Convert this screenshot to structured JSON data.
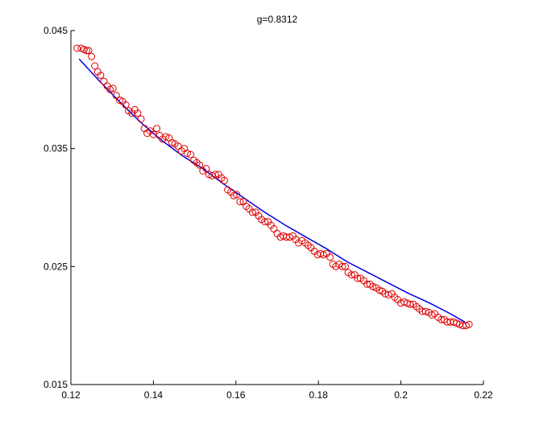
{
  "chart_data": {
    "type": "scatter",
    "title": "g=0.8312",
    "xlabel": "",
    "ylabel": "",
    "xlim": [
      0.12,
      0.22
    ],
    "ylim": [
      0.015,
      0.045
    ],
    "xticks": [
      0.12,
      0.14,
      0.16,
      0.18,
      0.2,
      0.22
    ],
    "xtick_labels": [
      "0.12",
      "0.14",
      "0.16",
      "0.18",
      "0.2",
      "0.22"
    ],
    "yticks": [
      0.015,
      0.025,
      0.035,
      0.045
    ],
    "ytick_labels": [
      "0.015",
      "0.025",
      "0.035",
      "0.045"
    ],
    "grid": false,
    "series": [
      {
        "kind": "markers",
        "marker": "circle-open",
        "color": "#e00000",
        "x": [
          0.1215,
          0.1225,
          0.1232,
          0.1238,
          0.1243,
          0.125,
          0.1258,
          0.1265,
          0.1272,
          0.128,
          0.1288,
          0.1295,
          0.1302,
          0.131,
          0.1318,
          0.1325,
          0.1333,
          0.134,
          0.1348,
          0.1355,
          0.1362,
          0.137,
          0.1378,
          0.1385,
          0.1392,
          0.14,
          0.1408,
          0.1415,
          0.1422,
          0.143,
          0.1438,
          0.1445,
          0.1452,
          0.146,
          0.1468,
          0.1475,
          0.1482,
          0.149,
          0.1498,
          0.1505,
          0.1512,
          0.152,
          0.1528,
          0.1535,
          0.1542,
          0.155,
          0.1558,
          0.1565,
          0.1572,
          0.158,
          0.1588,
          0.1595,
          0.1602,
          0.161,
          0.1618,
          0.1625,
          0.1632,
          0.164,
          0.1648,
          0.1655,
          0.1662,
          0.167,
          0.1678,
          0.1685,
          0.1692,
          0.17,
          0.1708,
          0.1715,
          0.1722,
          0.173,
          0.1738,
          0.1745,
          0.1752,
          0.176,
          0.1768,
          0.1775,
          0.1782,
          0.179,
          0.1798,
          0.1805,
          0.1812,
          0.182,
          0.1828,
          0.1835,
          0.1842,
          0.185,
          0.1858,
          0.1865,
          0.1872,
          0.188,
          0.1888,
          0.1895,
          0.1902,
          0.191,
          0.1918,
          0.1925,
          0.1932,
          0.194,
          0.1948,
          0.1955,
          0.1962,
          0.197,
          0.1978,
          0.1985,
          0.1992,
          0.2,
          0.2008,
          0.2015,
          0.2022,
          0.203,
          0.2038,
          0.2045,
          0.2052,
          0.206,
          0.2068,
          0.2075,
          0.2082,
          0.209,
          0.2098,
          0.2105,
          0.2112,
          0.212,
          0.2128,
          0.2135,
          0.2142,
          0.215,
          0.2158,
          0.2165
        ],
        "y": [
          0.0435,
          0.0435,
          0.0434,
          0.0433,
          0.0433,
          0.0428,
          0.042,
          0.0415,
          0.0412,
          0.0407,
          0.0403,
          0.04,
          0.0401,
          0.0395,
          0.0391,
          0.039,
          0.0387,
          0.0382,
          0.038,
          0.0383,
          0.038,
          0.0375,
          0.0367,
          0.0363,
          0.0365,
          0.0362,
          0.0367,
          0.0361,
          0.0358,
          0.036,
          0.0359,
          0.0355,
          0.0354,
          0.0352,
          0.0348,
          0.035,
          0.0346,
          0.0345,
          0.034,
          0.0338,
          0.0336,
          0.0331,
          0.0333,
          0.0328,
          0.0327,
          0.0328,
          0.0328,
          0.0325,
          0.0323,
          0.0315,
          0.0313,
          0.031,
          0.0311,
          0.0305,
          0.0305,
          0.0301,
          0.0299,
          0.0296,
          0.0296,
          0.0293,
          0.029,
          0.0288,
          0.0288,
          0.0285,
          0.0282,
          0.0278,
          0.0275,
          0.0276,
          0.0275,
          0.0275,
          0.0276,
          0.0273,
          0.027,
          0.0272,
          0.027,
          0.0268,
          0.0266,
          0.0263,
          0.026,
          0.0261,
          0.026,
          0.0261,
          0.0258,
          0.0252,
          0.025,
          0.0252,
          0.025,
          0.025,
          0.0245,
          0.0243,
          0.0243,
          0.024,
          0.024,
          0.0238,
          0.0235,
          0.0235,
          0.0233,
          0.0232,
          0.023,
          0.0229,
          0.0227,
          0.0226,
          0.0227,
          0.0224,
          0.0222,
          0.0219,
          0.022,
          0.0219,
          0.0218,
          0.0218,
          0.0216,
          0.0214,
          0.0212,
          0.0212,
          0.0211,
          0.0209,
          0.021,
          0.0207,
          0.0205,
          0.0205,
          0.0203,
          0.0203,
          0.0203,
          0.0202,
          0.0201,
          0.02,
          0.02,
          0.0201
        ]
      },
      {
        "kind": "line",
        "color": "#0000e0",
        "x": [
          0.122,
          0.127,
          0.132,
          0.137,
          0.142,
          0.147,
          0.152,
          0.157,
          0.162,
          0.167,
          0.172,
          0.177,
          0.182,
          0.187,
          0.192,
          0.197,
          0.202,
          0.207,
          0.212,
          0.2155
        ],
        "y": [
          0.0426,
          0.0407,
          0.0389,
          0.0372,
          0.0357,
          0.0344,
          0.0333,
          0.032,
          0.0308,
          0.0296,
          0.0285,
          0.0275,
          0.0265,
          0.0254,
          0.0245,
          0.0236,
          0.0227,
          0.0219,
          0.021,
          0.0203
        ]
      }
    ]
  }
}
